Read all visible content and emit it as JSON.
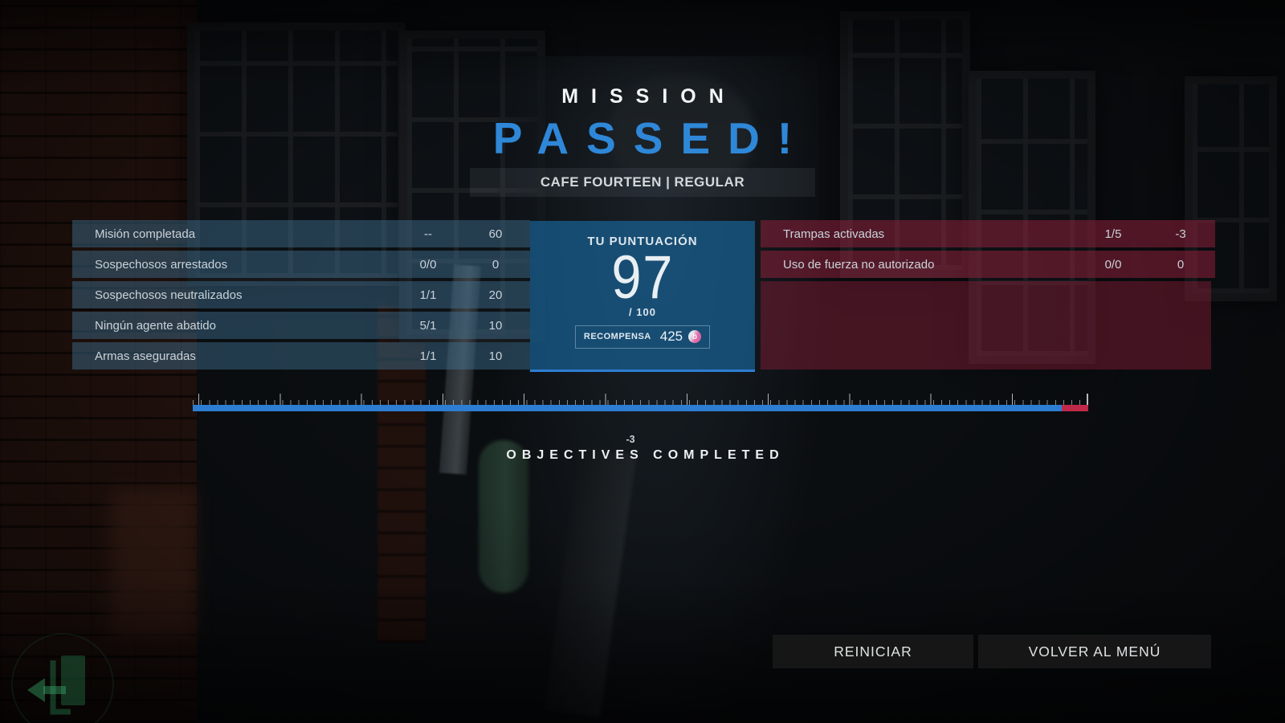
{
  "title": {
    "line1": "MISSION",
    "line2": "PASSED!"
  },
  "subtitle": "CAFE FOURTEEN | REGULAR",
  "left_table": {
    "rows": [
      {
        "label": "Misión completada",
        "ratio": "--",
        "points": "60"
      },
      {
        "label": "Sospechosos arrestados",
        "ratio": "0/0",
        "points": "0"
      },
      {
        "label": "Sospechosos neutralizados",
        "ratio": "1/1",
        "points": "20"
      },
      {
        "label": "Ningún agente abatido",
        "ratio": "5/1",
        "points": "10"
      },
      {
        "label": "Armas aseguradas",
        "ratio": "1/1",
        "points": "10"
      }
    ]
  },
  "score_panel": {
    "heading": "TU PUNTUACIÓN",
    "score": "97",
    "max": "/ 100",
    "reward_label": "RECOMPENSA",
    "reward_value": "425"
  },
  "right_table": {
    "rows": [
      {
        "label": "Trampas activadas",
        "ratio": "1/5",
        "points": "-3"
      },
      {
        "label": "Uso de fuerza no autorizado",
        "ratio": "0/0",
        "points": "0"
      }
    ]
  },
  "progress": {
    "value": 97,
    "max": 100,
    "penalty_label": "-3",
    "caption": "OBJECTIVES COMPLETED"
  },
  "buttons": {
    "restart": "REINICIAR",
    "back_to_menu": "VOLVER AL MENÚ"
  },
  "colors": {
    "accent_blue": "#2f87d7",
    "bar_blue": "#2d7dd2",
    "bar_red": "#c1294a",
    "panel_blue": "rgba(25,105,160,0.65)",
    "row_blue": "rgba(70,125,160,0.42)",
    "row_red": "rgba(160,35,65,0.48)",
    "button_bg": "#161616",
    "exit_green": "#2f9e63"
  }
}
